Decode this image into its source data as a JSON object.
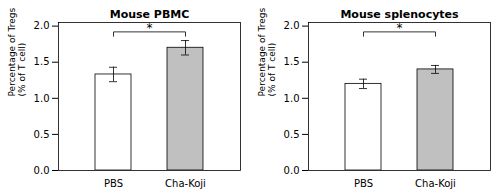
{
  "chart_data": [
    {
      "type": "bar",
      "title": "Mouse PBMC",
      "categories": [
        "PBS",
        "Cha-Koji"
      ],
      "values": [
        1.33,
        1.7
      ],
      "errors": [
        0.1,
        0.1
      ],
      "colors": [
        "#ffffff",
        "#c0c0c0"
      ],
      "ylabel": "Percentage of Tregs\n(% of T cell)",
      "ylim": [
        0,
        2.05
      ],
      "yticks": [
        {
          "value": 0,
          "label": "0.0"
        },
        0.5,
        {
          "value": 1,
          "label": "1.0"
        },
        1.5,
        {
          "value": 2,
          "label": "2.0"
        }
      ],
      "annotations": [
        {
          "text": "*",
          "from": "PBS",
          "to": "Cha-Koji",
          "y": 1.92,
          "y_bottom": 1.86
        }
      ]
    },
    {
      "type": "bar",
      "title": "Mouse splenocytes",
      "categories": [
        "PBS",
        "Cha-Koji"
      ],
      "values": [
        1.2,
        1.4
      ],
      "errors": [
        0.065,
        0.055
      ],
      "colors": [
        "#ffffff",
        "#c0c0c0"
      ],
      "ylabel": "Percentage of Tregs\n(% of T cell)",
      "ylim": [
        0,
        2.05
      ],
      "yticks": [
        {
          "value": 0,
          "label": "0.0"
        },
        0.5,
        {
          "value": 1,
          "label": "1.0"
        },
        1.5,
        {
          "value": 2,
          "label": "2.0"
        }
      ],
      "annotations": [
        {
          "text": "*",
          "from": "PBS",
          "to": "Cha-Koji",
          "y": 1.92,
          "y_bottom": 1.86
        }
      ]
    }
  ]
}
